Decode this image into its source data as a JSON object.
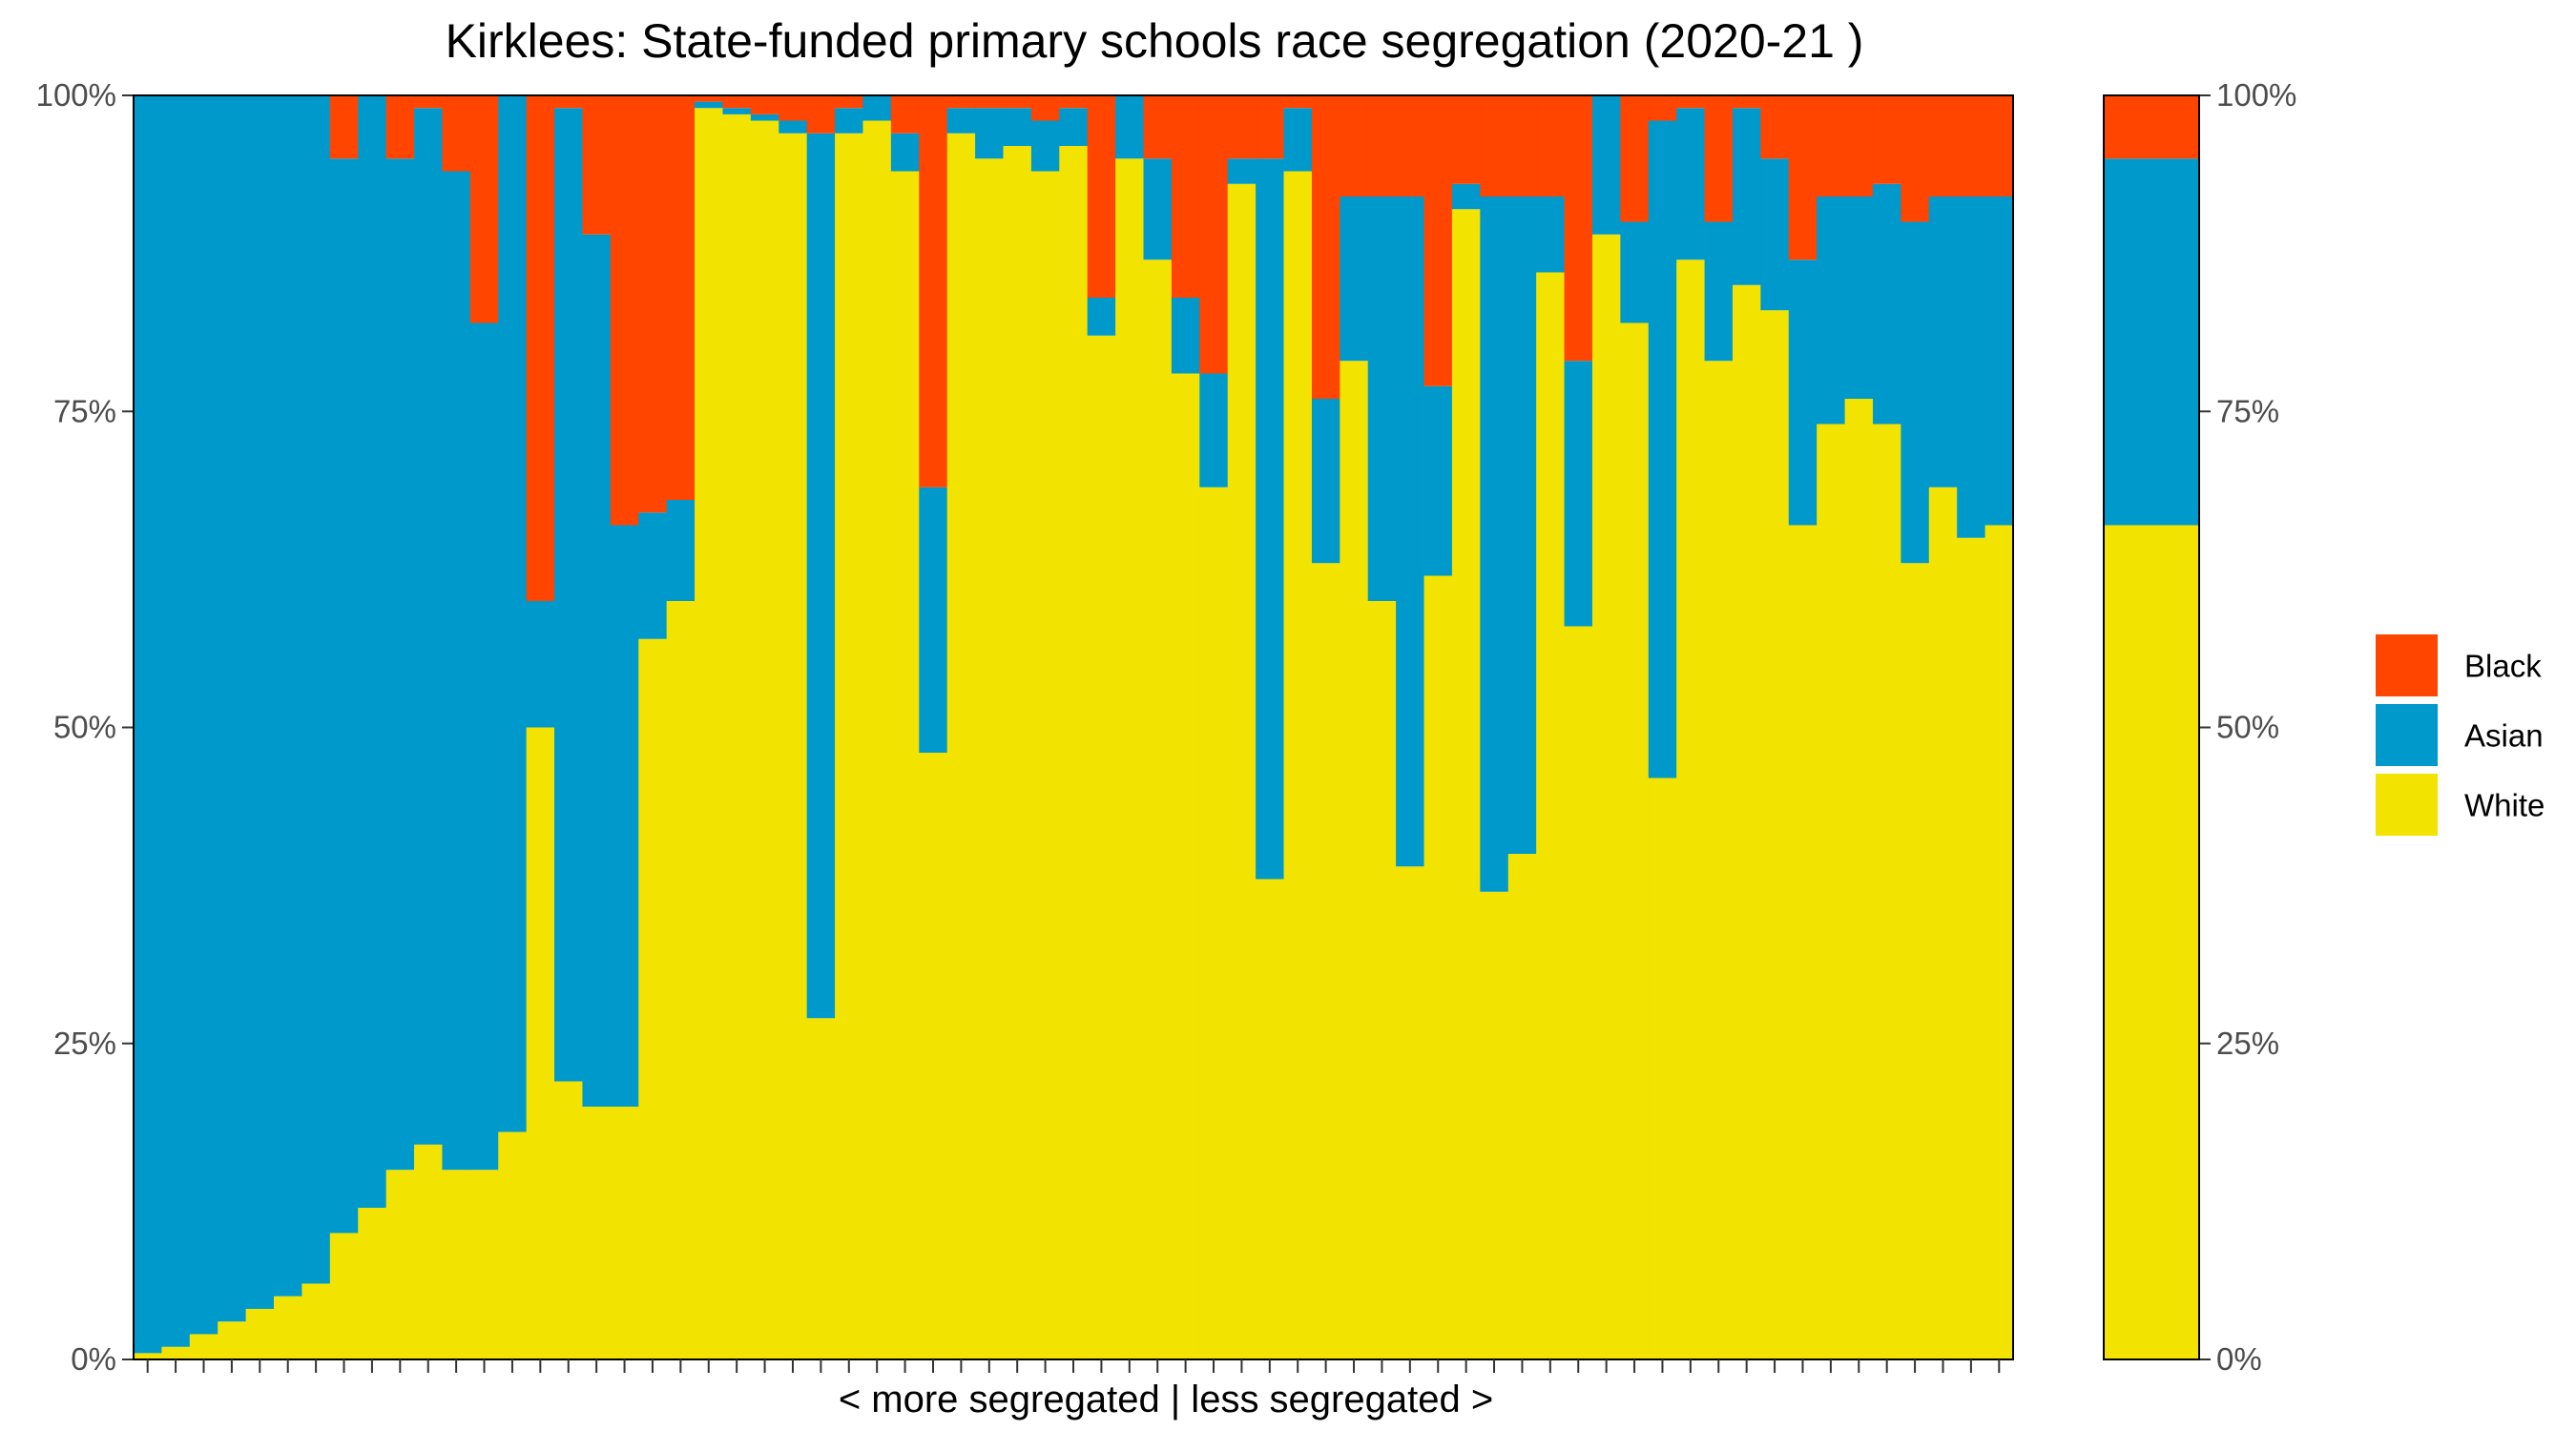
{
  "chart_data": {
    "type": "bar",
    "stacked": true,
    "normalized": true,
    "title": "Kirklees: State-funded primary schools race segregation (2020-21 )",
    "xlabel": "< more segregated | less segregated >",
    "ylabel": "",
    "ylim": [
      0,
      1
    ],
    "y_ticks": [
      "0%",
      "25%",
      "50%",
      "75%",
      "100%"
    ],
    "grid": false,
    "legend_position": "right",
    "series": [
      {
        "name": "Black",
        "color": "#FF4500"
      },
      {
        "name": "Asian",
        "color": "#0099CC"
      },
      {
        "name": "White",
        "color": "#F2E300"
      }
    ],
    "schools": [
      {
        "white": 0.005,
        "asian": 0.995
      },
      {
        "white": 0.01,
        "asian": 0.99
      },
      {
        "white": 0.02,
        "asian": 0.98
      },
      {
        "white": 0.03,
        "asian": 0.97
      },
      {
        "white": 0.04,
        "asian": 0.96
      },
      {
        "white": 0.05,
        "asian": 0.95
      },
      {
        "white": 0.06,
        "asian": 0.94
      },
      {
        "white": 0.1,
        "asian": 0.85,
        "black": 0.05
      },
      {
        "white": 0.12,
        "asian": 0.88
      },
      {
        "white": 0.15,
        "asian": 0.8,
        "black": 0.05
      },
      {
        "white": 0.17,
        "asian": 0.82
      },
      {
        "white": 0.15,
        "asian": 0.79,
        "black": 0.06
      },
      {
        "white": 0.15,
        "asian": 0.67,
        "black": 0.18
      },
      {
        "white": 0.18,
        "asian": 0.82
      },
      {
        "white": 0.5,
        "asian": 0.1,
        "black": 0.4
      },
      {
        "white": 0.22,
        "asian": 0.77
      },
      {
        "white": 0.2,
        "asian": 0.69,
        "black": 0.11
      },
      {
        "white": 0.2,
        "asian": 0.46,
        "black": 0.34
      },
      {
        "white": 0.57,
        "asian": 0.1,
        "black": 0.33
      },
      {
        "white": 0.6,
        "asian": 0.08,
        "black": 0.32
      },
      {
        "white": 0.99,
        "asian": 0.005
      },
      {
        "white": 0.985,
        "asian": 0.005
      },
      {
        "white": 0.98,
        "asian": 0.005
      },
      {
        "white": 0.97,
        "asian": 0.01
      },
      {
        "white": 0.27,
        "asian": 0.7,
        "black": 0.03
      },
      {
        "white": 0.97,
        "asian": 0.02
      },
      {
        "white": 0.98,
        "asian": 0.02
      },
      {
        "white": 0.94,
        "asian": 0.03,
        "black": 0.03
      },
      {
        "white": 0.48,
        "asian": 0.21,
        "black": 0.31
      },
      {
        "white": 0.97,
        "asian": 0.02
      },
      {
        "white": 0.95,
        "asian": 0.04
      },
      {
        "white": 0.96,
        "asian": 0.03
      },
      {
        "white": 0.94,
        "asian": 0.04
      },
      {
        "white": 0.96,
        "asian": 0.03
      },
      {
        "white": 0.81,
        "asian": 0.03,
        "black": 0.16
      },
      {
        "white": 0.95,
        "asian": 0.05
      },
      {
        "white": 0.87,
        "asian": 0.08
      },
      {
        "white": 0.78,
        "asian": 0.06,
        "black": 0.16
      },
      {
        "white": 0.69,
        "asian": 0.09,
        "black": 0.22
      },
      {
        "white": 0.93,
        "asian": 0.02,
        "black": 0.05
      },
      {
        "white": 0.38,
        "asian": 0.57,
        "black": 0.05
      },
      {
        "white": 0.94,
        "asian": 0.05
      },
      {
        "white": 0.63,
        "asian": 0.13,
        "black": 0.24
      },
      {
        "white": 0.79,
        "asian": 0.13,
        "black": 0.08
      },
      {
        "white": 0.6,
        "asian": 0.32,
        "black": 0.08
      },
      {
        "white": 0.39,
        "asian": 0.53,
        "black": 0.08
      },
      {
        "white": 0.62,
        "asian": 0.15,
        "black": 0.23
      },
      {
        "white": 0.91,
        "asian": 0.02,
        "black": 0.07
      },
      {
        "white": 0.37,
        "asian": 0.55,
        "black": 0.08
      },
      {
        "white": 0.4,
        "asian": 0.52,
        "black": 0.08
      },
      {
        "white": 0.86,
        "asian": 0.06,
        "black": 0.08
      },
      {
        "white": 0.58,
        "asian": 0.21,
        "black": 0.21
      },
      {
        "white": 0.89,
        "asian": 0.11
      },
      {
        "white": 0.82,
        "asian": 0.08,
        "black": 0.1
      },
      {
        "white": 0.46,
        "asian": 0.52,
        "black": 0.02
      },
      {
        "white": 0.87,
        "asian": 0.12
      },
      {
        "white": 0.79,
        "asian": 0.11,
        "black": 0.1
      },
      {
        "white": 0.85,
        "asian": 0.14
      },
      {
        "white": 0.83,
        "asian": 0.12,
        "black": 0.05
      },
      {
        "white": 0.66,
        "asian": 0.21,
        "black": 0.13
      },
      {
        "white": 0.74,
        "asian": 0.18,
        "black": 0.08
      },
      {
        "white": 0.76,
        "asian": 0.16,
        "black": 0.08
      },
      {
        "white": 0.74,
        "asian": 0.19,
        "black": 0.07
      },
      {
        "white": 0.63,
        "asian": 0.27,
        "black": 0.1
      },
      {
        "white": 0.69,
        "asian": 0.23,
        "black": 0.08
      },
      {
        "white": 0.65,
        "asian": 0.27,
        "black": 0.08
      },
      {
        "white": 0.66,
        "asian": 0.26,
        "black": 0.08
      }
    ],
    "summary_bar": {
      "white": 0.66,
      "asian": 0.29,
      "black": 0.05
    }
  }
}
